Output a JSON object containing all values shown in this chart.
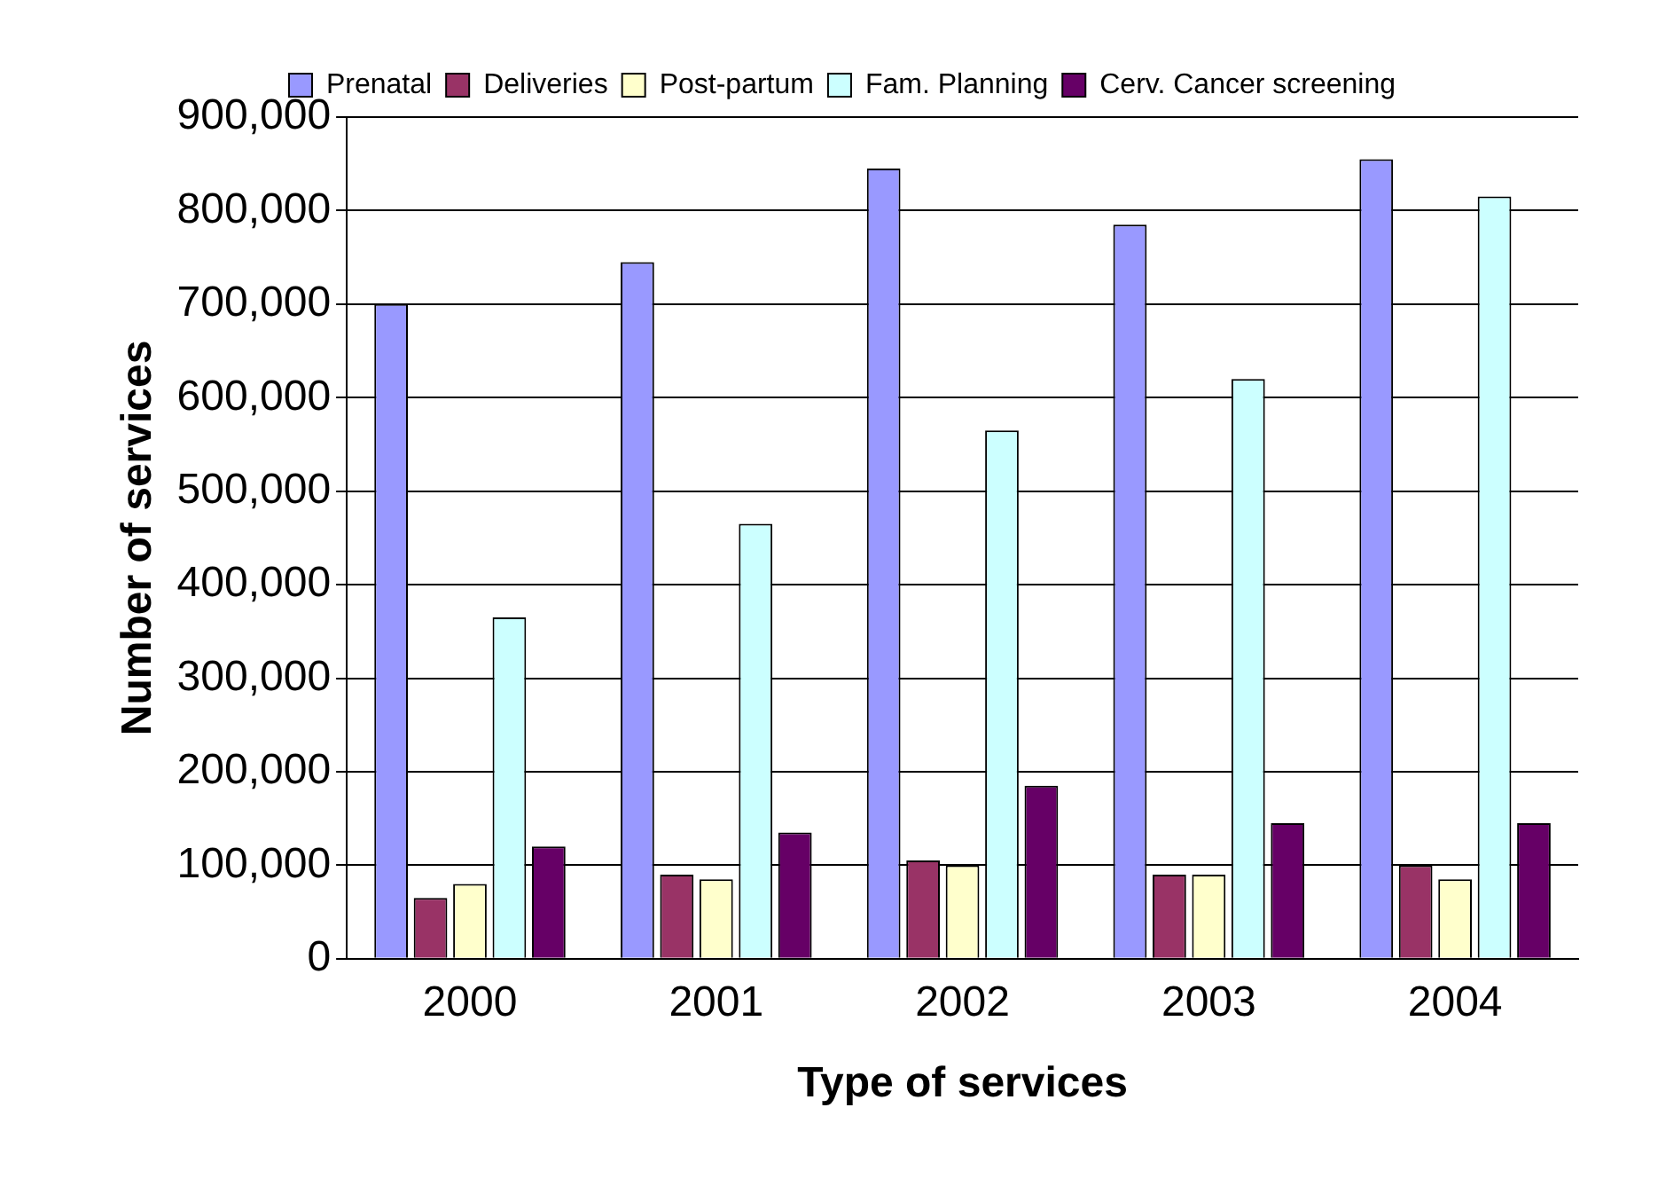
{
  "chart_data": {
    "type": "bar",
    "xlabel": "Type of services",
    "ylabel": "Number of services",
    "categories": [
      "2000",
      "2001",
      "2002",
      "2003",
      "2004"
    ],
    "series": [
      {
        "name": "Prenatal",
        "color": "#9999ff",
        "values": [
          700000,
          745000,
          845000,
          785000,
          855000
        ]
      },
      {
        "name": "Deliveries",
        "color": "#993366",
        "values": [
          65000,
          90000,
          105000,
          90000,
          100000
        ]
      },
      {
        "name": "Post-partum",
        "color": "#ffffcc",
        "values": [
          80000,
          85000,
          100000,
          90000,
          85000
        ]
      },
      {
        "name": "Fam. Planning",
        "color": "#ccffff",
        "values": [
          365000,
          465000,
          565000,
          620000,
          815000
        ]
      },
      {
        "name": "Cerv. Cancer screening",
        "color": "#660066",
        "values": [
          120000,
          135000,
          185000,
          145000,
          145000
        ]
      }
    ],
    "ylim": [
      0,
      900000
    ],
    "yticks": [
      0,
      {
        "value": 100000,
        "label": "100,000"
      },
      {
        "value": 200000,
        "label": "200,000"
      },
      {
        "value": 300000,
        "label": "300,000"
      },
      {
        "value": 400000,
        "label": "400,000"
      },
      {
        "value": 500000,
        "label": "500,000"
      },
      {
        "value": 600000,
        "label": "600,000"
      },
      {
        "value": 700000,
        "label": "700,000"
      },
      {
        "value": 800000,
        "label": "800,000"
      },
      {
        "value": 900000,
        "label": "900,000"
      }
    ],
    "grid": "y",
    "legend": "top"
  }
}
